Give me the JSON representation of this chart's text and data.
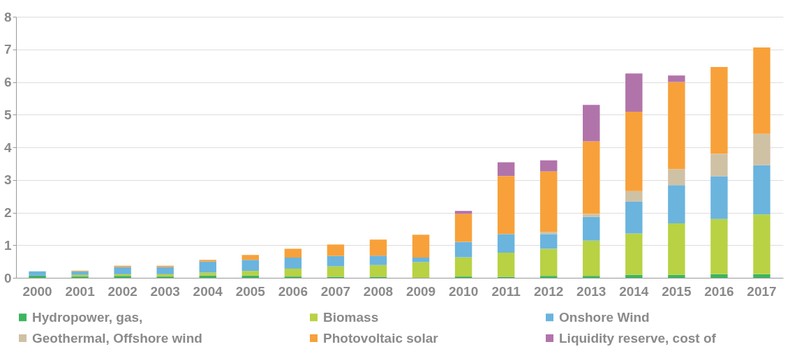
{
  "chart_data": {
    "type": "bar",
    "stacked": true,
    "categories": [
      "2000",
      "2001",
      "2002",
      "2003",
      "2004",
      "2005",
      "2006",
      "2007",
      "2008",
      "2009",
      "2010",
      "2011",
      "2012",
      "2013",
      "2014",
      "2015",
      "2016",
      "2017"
    ],
    "series": [
      {
        "name": "Hydropower, gas,",
        "color": "#3cb55e",
        "values": [
          0.07,
          0.04,
          0.06,
          0.04,
          0.07,
          0.07,
          0.04,
          0.03,
          0.03,
          null,
          0.04,
          0.03,
          0.06,
          0.06,
          0.09,
          0.09,
          0.11,
          0.11
        ]
      },
      {
        "name": "Biomass",
        "color": "#b8d243",
        "values": [
          0,
          0.05,
          0.05,
          0.07,
          0.09,
          0.14,
          0.24,
          0.32,
          0.36,
          0.48,
          0.59,
          0.74,
          0.83,
          1.08,
          1.27,
          1.58,
          1.69,
          1.83
        ]
      },
      {
        "name": "Onshore Wind",
        "color": "#6ab4de",
        "values": [
          0.13,
          0.11,
          0.22,
          0.22,
          0.34,
          0.34,
          0.34,
          0.32,
          0.29,
          0.14,
          0.47,
          0.57,
          0.45,
          0.73,
          0.98,
          1.17,
          1.31,
          1.51
        ]
      },
      {
        "name": "Geothermal, Offshore wind",
        "color": "#cfc1a4",
        "values": [
          0,
          0,
          0,
          0,
          0,
          0,
          0,
          0,
          0,
          0,
          0,
          0,
          0.07,
          0.09,
          0.32,
          0.49,
          0.69,
          0.96
        ]
      },
      {
        "name": "Photovoltaic solar",
        "color": "#f8a13a",
        "values": [
          0,
          0.02,
          0.04,
          0.04,
          0.05,
          0.15,
          0.27,
          0.35,
          0.49,
          0.7,
          0.86,
          1.78,
          1.85,
          2.22,
          2.43,
          2.67,
          2.66,
          2.65
        ]
      },
      {
        "name": "Liquidity reserve, cost of",
        "color": "#b174aa",
        "values": [
          0,
          0,
          0,
          0,
          0,
          0,
          0,
          0,
          0,
          0,
          0.09,
          0.42,
          0.34,
          1.12,
          1.17,
          0.2,
          0,
          0
        ]
      }
    ],
    "ylim": [
      0,
      8
    ],
    "yticks": [
      0,
      1,
      2,
      3,
      4,
      5,
      6,
      7,
      8
    ],
    "grid": "y",
    "legend": "bottom"
  }
}
